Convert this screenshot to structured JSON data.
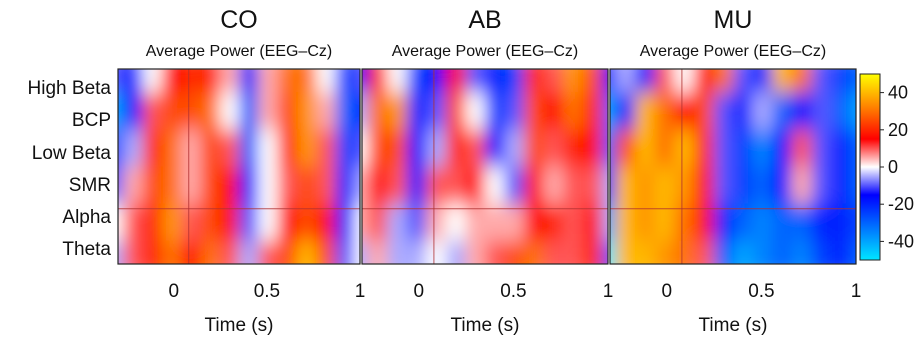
{
  "chart_data": {
    "type": "heatmap",
    "y_categories": [
      "High Beta",
      "BCP",
      "Low Beta",
      "SMR",
      "Alpha",
      "Theta"
    ],
    "x_ticks": [
      "0",
      "0.5",
      "1"
    ],
    "x_tick_values": [
      0,
      0.5,
      1
    ],
    "xlim": [
      -0.3,
      1.0
    ],
    "xlabel": "Time (s)",
    "colorbar": {
      "range": [
        -50,
        50
      ],
      "ticks": [
        40,
        20,
        0,
        -20,
        -40
      ],
      "tick_labels": [
        "40",
        "20",
        "0",
        "-20",
        "-40"
      ],
      "colors": [
        "#00e6ff",
        "#0070ff",
        "#0000ff",
        "#ffffff",
        "#ff0000",
        "#ff8000",
        "#ffff00"
      ],
      "placement": "right"
    },
    "marker_lines": {
      "time": 0.08,
      "band_index": 4,
      "color": "#b03030"
    },
    "panels": [
      {
        "title": "CO",
        "subtitle": "Average Power (EEG–Cz)",
        "values": [
          [
            -10,
            -20,
            0,
            15,
            20,
            20,
            5,
            -20,
            5,
            30,
            30,
            0,
            -25,
            -10
          ],
          [
            -40,
            -15,
            10,
            25,
            25,
            30,
            0,
            -30,
            5,
            25,
            35,
            5,
            -30,
            -20
          ],
          [
            -25,
            -5,
            20,
            30,
            5,
            25,
            10,
            -30,
            0,
            20,
            35,
            10,
            -25,
            -10
          ],
          [
            -10,
            5,
            25,
            30,
            5,
            25,
            15,
            -20,
            0,
            10,
            25,
            10,
            -20,
            -5
          ],
          [
            0,
            10,
            20,
            35,
            10,
            25,
            15,
            -10,
            0,
            15,
            25,
            15,
            -20,
            0
          ],
          [
            -5,
            10,
            20,
            30,
            15,
            30,
            10,
            -5,
            10,
            25,
            40,
            25,
            -10,
            0
          ]
        ]
      },
      {
        "title": "AB",
        "subtitle": "Average Power (EEG–Cz)",
        "values": [
          [
            -15,
            20,
            0,
            -25,
            -15,
            15,
            -10,
            -20,
            -25,
            20,
            10,
            35,
            25,
            -15
          ],
          [
            -5,
            30,
            35,
            -20,
            -10,
            25,
            0,
            -25,
            -10,
            25,
            15,
            30,
            20,
            -10
          ],
          [
            0,
            25,
            25,
            -15,
            -5,
            20,
            10,
            -15,
            -5,
            25,
            10,
            20,
            15,
            -10
          ],
          [
            5,
            15,
            10,
            -20,
            10,
            10,
            15,
            0,
            -10,
            15,
            5,
            10,
            10,
            -5
          ],
          [
            5,
            10,
            -5,
            -10,
            5,
            0,
            5,
            5,
            5,
            15,
            20,
            10,
            15,
            -5
          ],
          [
            -5,
            5,
            -5,
            -5,
            0,
            -5,
            5,
            10,
            25,
            30,
            10,
            10,
            20,
            -10
          ]
        ]
      },
      {
        "title": "MU",
        "subtitle": "Average Power (EEG–Cz)",
        "values": [
          [
            -20,
            -5,
            -15,
            10,
            0,
            15,
            30,
            -10,
            -20,
            40,
            30,
            -10,
            -25,
            -30
          ],
          [
            -40,
            -15,
            40,
            30,
            15,
            25,
            -10,
            -20,
            -5,
            -30,
            -15,
            -10,
            -30,
            -40
          ],
          [
            -30,
            25,
            40,
            30,
            40,
            20,
            -10,
            -25,
            -35,
            -15,
            10,
            -10,
            -20,
            -30
          ],
          [
            -20,
            40,
            35,
            40,
            35,
            15,
            -10,
            -25,
            -30,
            -15,
            5,
            -10,
            -20,
            -30
          ],
          [
            -40,
            40,
            35,
            40,
            30,
            15,
            -20,
            -30,
            -35,
            -30,
            -30,
            -20,
            -20,
            -25
          ],
          [
            -50,
            40,
            40,
            35,
            30,
            10,
            -30,
            -40,
            -35,
            -30,
            -35,
            -25,
            -20,
            -30
          ]
        ]
      }
    ]
  }
}
